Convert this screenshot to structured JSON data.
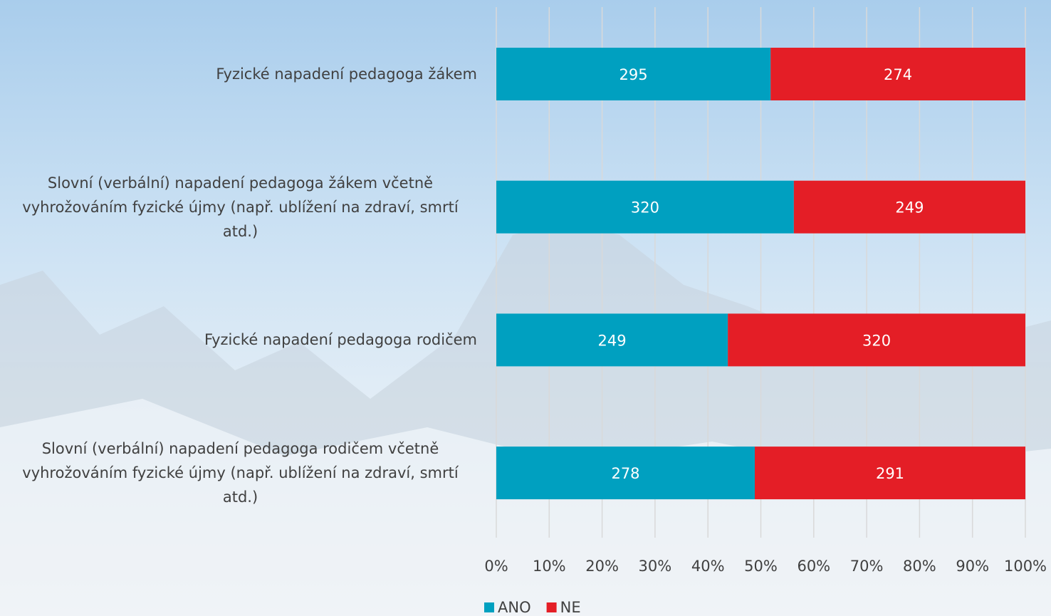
{
  "chart_data": {
    "type": "bar",
    "orientation": "horizontal",
    "stacking": "percent",
    "categories": [
      "Fyzické napadení pedagoga žákem",
      "Slovní (verbální) napadení pedagoga žákem včetně vyhrožováním fyzické újmy (např. ublížení na zdraví, smrtí atd.)",
      "Fyzické napadení pedagoga rodičem",
      "Slovní (verbální) napadení pedagoga rodičem včetně vyhrožováním fyzické újmy (např. ublížení na zdraví, smrtí atd.)"
    ],
    "series": [
      {
        "name": "ANO",
        "color": "#00a0c0",
        "values": [
          295,
          320,
          249,
          278
        ]
      },
      {
        "name": "NE",
        "color": "#e41e26",
        "values": [
          274,
          249,
          320,
          291
        ]
      }
    ],
    "xlim": [
      0,
      100
    ],
    "xticks": [
      {
        "value": 0,
        "label": "0%"
      },
      {
        "value": 10,
        "label": "10%"
      },
      {
        "value": 20,
        "label": "20%"
      },
      {
        "value": 30,
        "label": "30%"
      },
      {
        "value": 40,
        "label": "40%"
      },
      {
        "value": 50,
        "label": "50%"
      },
      {
        "value": 60,
        "label": "60%"
      },
      {
        "value": 70,
        "label": "70%"
      },
      {
        "value": 80,
        "label": "80%"
      },
      {
        "value": 90,
        "label": "90%"
      },
      {
        "value": 100,
        "label": "100%"
      }
    ],
    "grid": true,
    "legend": "bottom"
  }
}
